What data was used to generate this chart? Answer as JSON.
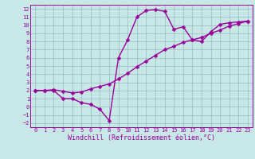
{
  "xlabel": "Windchill (Refroidissement éolien,°C)",
  "bg_color": "#c8e8e8",
  "line_color": "#990099",
  "grid_color": "#99bbbb",
  "xlim": [
    -0.5,
    23.5
  ],
  "ylim": [
    -2.5,
    12.5
  ],
  "xticks": [
    0,
    1,
    2,
    3,
    4,
    5,
    6,
    7,
    8,
    9,
    10,
    11,
    12,
    13,
    14,
    15,
    16,
    17,
    18,
    19,
    20,
    21,
    22,
    23
  ],
  "yticks": [
    -2,
    -1,
    0,
    1,
    2,
    3,
    4,
    5,
    6,
    7,
    8,
    9,
    10,
    11,
    12
  ],
  "curve1_x": [
    0,
    1,
    2,
    3,
    4,
    5,
    6,
    7,
    8,
    9,
    10,
    11,
    12,
    13,
    14,
    15,
    16,
    17,
    18,
    19,
    20,
    21,
    22,
    23
  ],
  "curve1_y": [
    2,
    2,
    2,
    1,
    1,
    0.5,
    0.3,
    -0.3,
    -1.7,
    6.0,
    8.2,
    11.0,
    11.8,
    11.9,
    11.7,
    9.5,
    9.8,
    8.2,
    8.0,
    9.2,
    10.1,
    10.3,
    10.4,
    10.5
  ],
  "curve2_x": [
    0,
    1,
    2,
    3,
    4,
    5,
    6,
    7,
    8,
    9,
    10,
    11,
    12,
    13,
    14,
    15,
    16,
    17,
    18,
    19,
    20,
    21,
    22,
    23
  ],
  "curve2_y": [
    2.0,
    2.0,
    2.1,
    1.9,
    1.7,
    1.8,
    2.2,
    2.5,
    2.8,
    3.4,
    4.1,
    4.9,
    5.6,
    6.3,
    7.0,
    7.4,
    7.9,
    8.2,
    8.5,
    9.0,
    9.4,
    9.9,
    10.2,
    10.5
  ],
  "markersize": 2.5,
  "linewidth": 1.0,
  "tick_fontsize": 5.0,
  "label_fontsize": 6.0
}
